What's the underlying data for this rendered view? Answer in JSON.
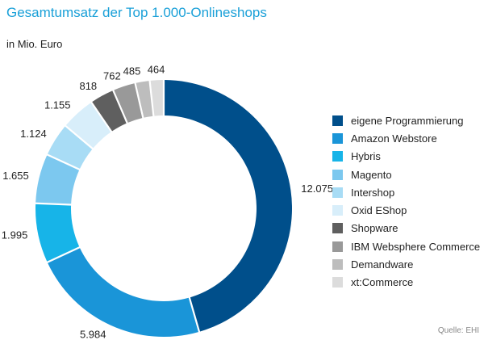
{
  "chart_data": {
    "type": "pie",
    "variant": "donut",
    "title": "Gesamtumsatz der Top 1.000-Onlineshops",
    "subtitle": "in Mio. Euro",
    "source": "Quelle: EHI",
    "legend_position": "right",
    "categories": [
      "eigene Programmierung",
      "Amazon Webstore",
      "Hybris",
      "Magento",
      "Intershop",
      "Oxid EShop",
      "Shopware",
      "IBM Websphere Commerce",
      "Demandware",
      "xt:Commerce"
    ],
    "values": [
      12075,
      5984,
      1995,
      1655,
      1124,
      1155,
      818,
      762,
      485,
      464
    ],
    "value_labels": [
      "12.075",
      "5.984",
      "1.995",
      "1.655",
      "1.124",
      "1.155",
      "818",
      "762",
      "485",
      "464"
    ],
    "colors": [
      "#004f8b",
      "#1a95d8",
      "#17b4e8",
      "#7cc8ef",
      "#a8dcf5",
      "#d8eefa",
      "#5f5f5f",
      "#999999",
      "#bdbdbd",
      "#dcdcdc"
    ]
  }
}
